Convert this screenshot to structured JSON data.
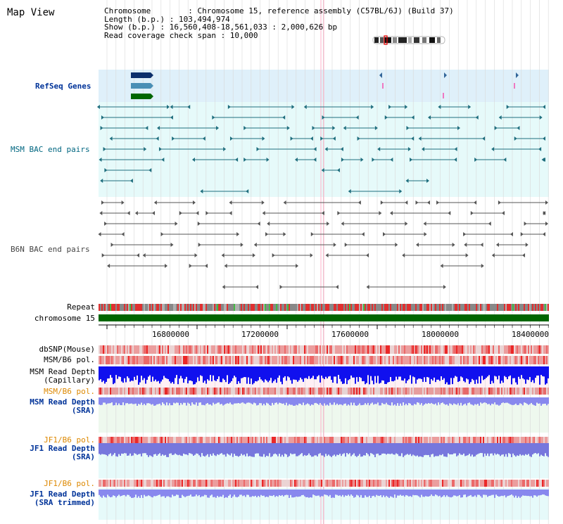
{
  "title": "Map View",
  "info": {
    "chromosome": "Chromosome        : Chromosome 15, reference assembly (C57BL/6J) (Build 37)",
    "length": "Length (b.p.) : 103,494,974",
    "show": "Show (b.p.) : 16,560,408-18,561,033 : 2,000,626 bp",
    "coverage": "Read coverage check span : 10,000"
  },
  "tracks": {
    "refseq": "RefSeq Genes",
    "msm_bac": "MSM BAC end pairs",
    "b6n_bac": "B6N BAC end pairs",
    "repeat": "Repeat",
    "chromosome": "chromosome 15",
    "dbsnp": "dbSNP(Mouse)",
    "msm_b6_pol_1": "MSM/B6 pol.",
    "msm_depth_cap": "MSM Read Depth\n(Capillary)",
    "msm_b6_pol_2": "MSM/B6 pol.",
    "msm_depth_sra": "MSM Read Depth\n(SRA)",
    "jf1_b6_pol_1": "JF1/B6 pol.",
    "jf1_depth_sra": "JF1 Read Depth\n(SRA)",
    "jf1_b6_pol_2": "JF1/B6 pol.",
    "jf1_depth_trim": "JF1 Read Depth\n(SRA trimmed)"
  },
  "axis_ticks": [
    "16800000",
    "17200000",
    "17600000",
    "18000000",
    "18400000"
  ],
  "colors": {
    "refseq_bg": "#dff0fa",
    "bac_bg": "#e6fafa",
    "b6n_bg": "#ffffff",
    "label_blue": "#003399",
    "label_teal": "#006680",
    "label_orange": "#dd8800",
    "gene_navy": "#0b2f6b",
    "gene_steel": "#4a8fb5",
    "gene_green": "#006600"
  }
}
